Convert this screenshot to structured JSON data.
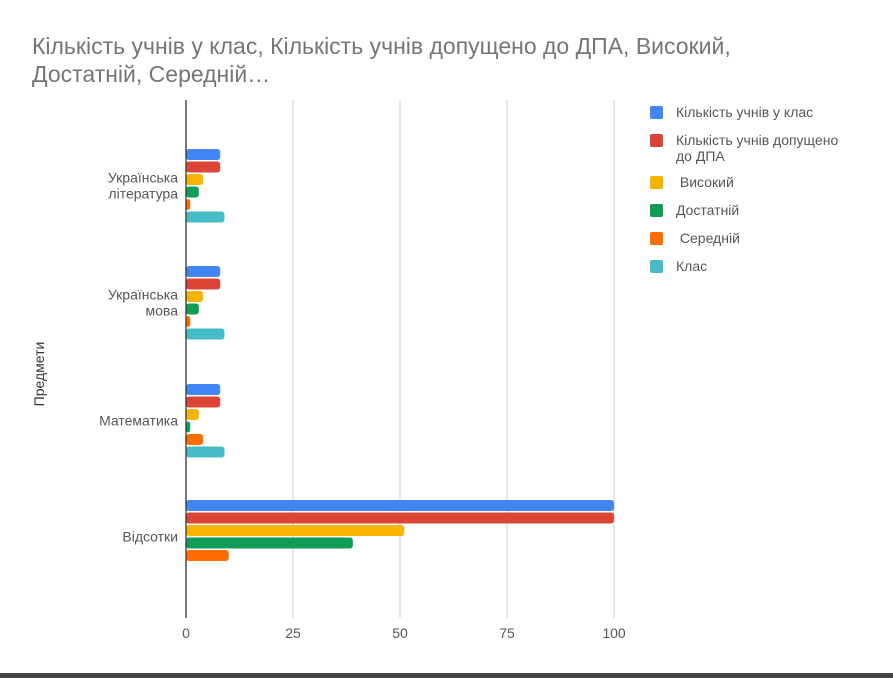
{
  "chart_data": {
    "type": "bar",
    "orientation": "horizontal",
    "title_lines": [
      "Кількість учнів у клас, Кількість учнів допущено до ДПА,  Високий,",
      "Достатній,  Середній…"
    ],
    "ylabel": "Предмети",
    "xlabel": "",
    "xlim": [
      0,
      100
    ],
    "xticks": [
      0,
      25,
      50,
      75,
      100
    ],
    "grid": true,
    "legend_position": "right",
    "categories": [
      "Українська література",
      "Українська мова",
      "Математика",
      "Відсотки"
    ],
    "category_label_lines": [
      [
        "Українська",
        "література"
      ],
      [
        "Українська",
        "мова"
      ],
      [
        "Математика"
      ],
      [
        "Відсотки"
      ]
    ],
    "series": [
      {
        "name": "Кількість учнів у клас",
        "legend_lines": [
          "Кількість учнів у клас"
        ],
        "color": "#4285f4",
        "values": [
          8,
          8,
          8,
          100
        ]
      },
      {
        "name": "Кількість учнів допущено до ДПА",
        "legend_lines": [
          "Кількість учнів допущено",
          "до ДПА"
        ],
        "color": "#db4437",
        "values": [
          8,
          8,
          8,
          100
        ]
      },
      {
        "name": " Високий",
        "legend_lines": [
          " Високий"
        ],
        "color": "#f4b400",
        "values": [
          4,
          4,
          3,
          51
        ]
      },
      {
        "name": "Достатній",
        "legend_lines": [
          "Достатній"
        ],
        "color": "#0f9d58",
        "values": [
          3,
          3,
          1,
          39
        ]
      },
      {
        "name": " Середній",
        "legend_lines": [
          " Середній"
        ],
        "color": "#ff6d00",
        "values": [
          1,
          1,
          4,
          10
        ]
      },
      {
        "name": "Клас",
        "legend_lines": [
          "Клас"
        ],
        "color": "#46bdc6",
        "values": [
          9,
          9,
          9,
          0
        ]
      }
    ]
  }
}
